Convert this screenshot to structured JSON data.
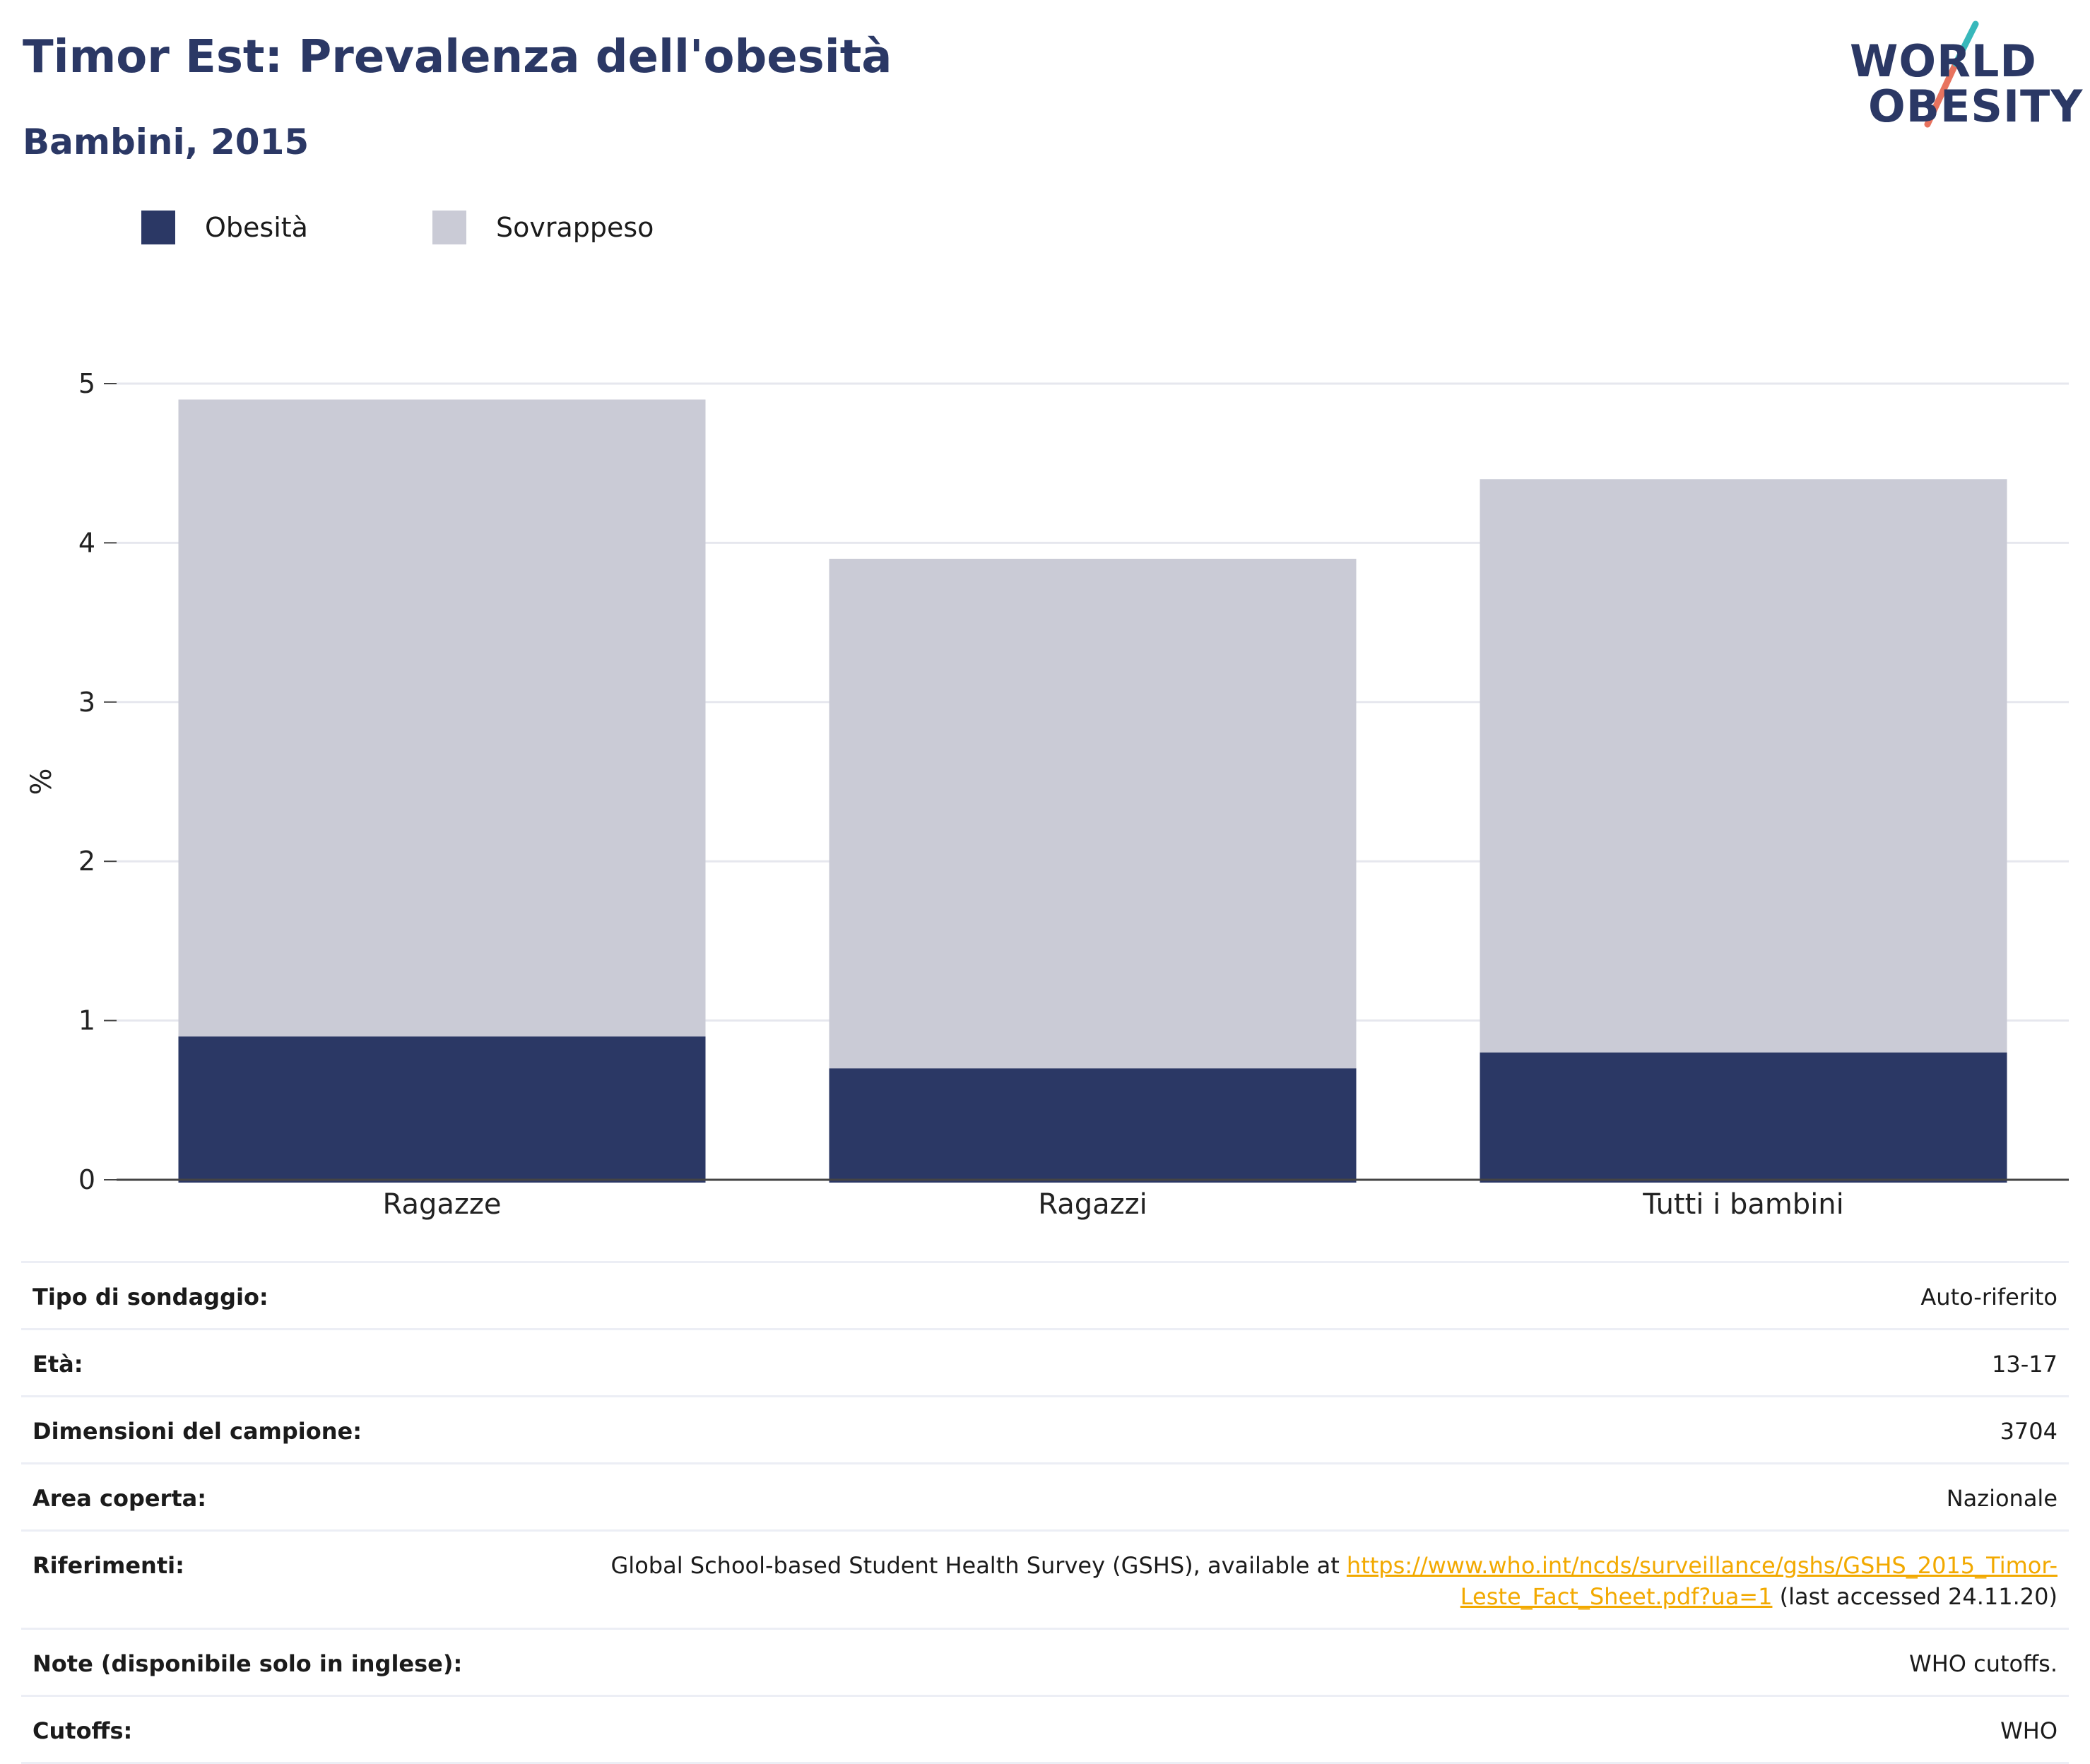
{
  "header": {
    "title": "Timor Est: Prevalenza dell'obesità",
    "subtitle": "Bambini, 2015"
  },
  "logo": {
    "line1": "WORLD",
    "line2": "OBESITY"
  },
  "legend": {
    "items": [
      {
        "label": "Obesità",
        "color": "#2b3865"
      },
      {
        "label": "Sovrappeso",
        "color": "#cacbd6"
      }
    ]
  },
  "chart_data": {
    "type": "bar",
    "stacked": true,
    "categories": [
      "Ragazze",
      "Ragazzi",
      "Tutti i bambini"
    ],
    "series": [
      {
        "name": "Obesità",
        "values": [
          0.9,
          0.7,
          0.8
        ],
        "color": "#2b3865"
      },
      {
        "name": "Sovrappeso",
        "values": [
          4.0,
          3.2,
          3.6
        ],
        "color": "#cacbd6"
      }
    ],
    "ylabel": "%",
    "ylim": [
      0,
      5
    ],
    "yticks": [
      "0",
      "1",
      "2",
      "3",
      "4",
      "5"
    ],
    "grid": true
  },
  "info": {
    "rows": [
      {
        "key": "Tipo di sondaggio:",
        "value": "Auto-riferito"
      },
      {
        "key": "Età:",
        "value": "13-17"
      },
      {
        "key": "Dimensioni del campione:",
        "value": "3704"
      },
      {
        "key": "Area coperta:",
        "value": "Nazionale"
      },
      {
        "key": "Riferimenti:",
        "value_prefix": "Global School-based Student Health Survey (GSHS), available at ",
        "link": "https://www.who.int/ncds/surveillance/gshs/GSHS_2015_Timor-Leste_Fact_Sheet.pdf?ua=1",
        "value_suffix": " (last accessed 24.11.20)"
      },
      {
        "key": "Note (disponibile solo in inglese):",
        "value": "WHO cutoffs."
      },
      {
        "key": "Cutoffs:",
        "value": "WHO"
      }
    ]
  }
}
